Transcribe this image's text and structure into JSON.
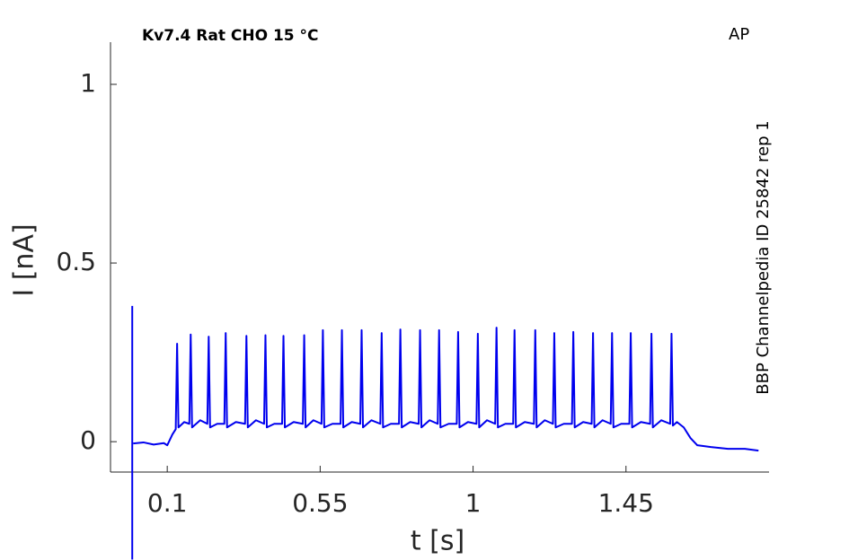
{
  "chart_data": {
    "type": "line",
    "title": "Kv7.4  Rat  CHO  15 °C",
    "annotation": "AP",
    "side_note": "BBP Channelpedia ID 25842 rep 1",
    "x_label": "t [s]",
    "y_label": "I [nA]",
    "color": "#0000ee",
    "xlim": [
      -0.067,
      1.871
    ],
    "ylim": [
      -0.085,
      1.118
    ],
    "xticks": [
      0.1,
      0.55,
      1,
      1.45
    ],
    "yticks": [
      0,
      0.5,
      1
    ],
    "grid": false,
    "x": [
      -0.003,
      -0.003,
      -0.002,
      0,
      0.03,
      0.06,
      0.09,
      0.1,
      0.115,
      0.125,
      0.129,
      0.133,
      0.15,
      0.165,
      0.169,
      0.173,
      0.197,
      0.218,
      0.222,
      0.226,
      0.247,
      0.268,
      0.272,
      0.276,
      0.302,
      0.329,
      0.333,
      0.337,
      0.361,
      0.385,
      0.389,
      0.393,
      0.415,
      0.438,
      0.442,
      0.446,
      0.472,
      0.499,
      0.503,
      0.507,
      0.53,
      0.554,
      0.558,
      0.562,
      0.586,
      0.61,
      0.614,
      0.618,
      0.643,
      0.668,
      0.672,
      0.676,
      0.701,
      0.727,
      0.731,
      0.735,
      0.758,
      0.782,
      0.786,
      0.79,
      0.815,
      0.84,
      0.844,
      0.848,
      0.872,
      0.896,
      0.9,
      0.904,
      0.928,
      0.952,
      0.956,
      0.96,
      0.985,
      1.01,
      1.014,
      1.018,
      1.041,
      1.065,
      1.069,
      1.073,
      1.095,
      1.118,
      1.122,
      1.126,
      1.152,
      1.179,
      1.183,
      1.187,
      1.211,
      1.235,
      1.239,
      1.243,
      1.267,
      1.291,
      1.295,
      1.299,
      1.324,
      1.349,
      1.353,
      1.357,
      1.381,
      1.405,
      1.409,
      1.413,
      1.436,
      1.46,
      1.464,
      1.468,
      1.494,
      1.521,
      1.525,
      1.529,
      1.554,
      1.58,
      1.584,
      1.588,
      1.6,
      1.62,
      1.64,
      1.66,
      1.7,
      1.75,
      1.8,
      1.84
    ],
    "values": [
      0.38,
      -0.33,
      null,
      -0.005,
      -0.002,
      -0.008,
      -0.004,
      -0.01,
      0.02,
      0.035,
      0.274,
      0.04,
      0.055,
      0.05,
      0.3,
      0.04,
      0.06,
      0.05,
      0.294,
      0.04,
      0.05,
      0.05,
      0.304,
      0.04,
      0.055,
      0.05,
      0.296,
      0.04,
      0.06,
      0.05,
      0.298,
      0.04,
      0.05,
      0.05,
      0.296,
      0.04,
      0.055,
      0.05,
      0.298,
      0.04,
      0.06,
      0.05,
      0.312,
      0.04,
      0.05,
      0.05,
      0.312,
      0.04,
      0.055,
      0.05,
      0.312,
      0.04,
      0.06,
      0.05,
      0.304,
      0.04,
      0.05,
      0.05,
      0.314,
      0.04,
      0.055,
      0.05,
      0.312,
      0.04,
      0.06,
      0.05,
      0.312,
      0.04,
      0.05,
      0.05,
      0.307,
      0.04,
      0.055,
      0.05,
      0.302,
      0.04,
      0.06,
      0.05,
      0.319,
      0.04,
      0.05,
      0.05,
      0.312,
      0.04,
      0.055,
      0.05,
      0.312,
      0.04,
      0.06,
      0.05,
      0.304,
      0.04,
      0.05,
      0.05,
      0.307,
      0.04,
      0.055,
      0.05,
      0.304,
      0.04,
      0.06,
      0.05,
      0.304,
      0.04,
      0.05,
      0.05,
      0.304,
      0.04,
      0.055,
      0.05,
      0.302,
      0.04,
      0.06,
      0.05,
      0.302,
      0.045,
      0.055,
      0.04,
      0.01,
      -0.01,
      -0.015,
      -0.02,
      -0.02,
      -0.025
    ]
  }
}
